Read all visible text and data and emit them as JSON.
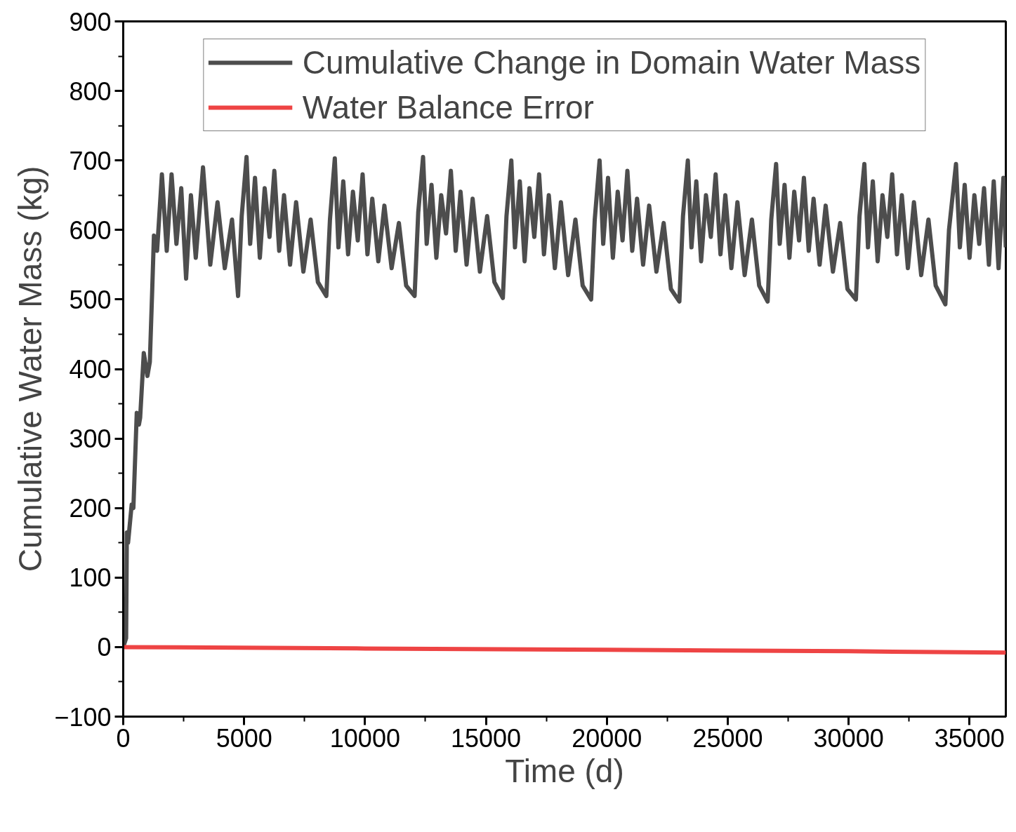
{
  "chart_data": {
    "type": "line",
    "xlabel": "Time (d)",
    "ylabel": "Cumulative Water Mass (kg)",
    "xlim": [
      0,
      36500
    ],
    "ylim": [
      -100,
      900
    ],
    "xticks": [
      0,
      5000,
      10000,
      15000,
      20000,
      25000,
      30000,
      35000
    ],
    "yticks": [
      -100,
      0,
      100,
      200,
      300,
      400,
      500,
      600,
      700,
      800,
      900
    ],
    "grid": false,
    "legend": "top",
    "line_style": "solid",
    "marker": "none",
    "series": [
      {
        "name": "Cumulative Change in Domain Water Mass",
        "color": "#4d4d4d",
        "x": [
          0,
          120,
          150,
          200,
          350,
          420,
          560,
          650,
          700,
          850,
          1000,
          1100,
          1200,
          1270,
          1400,
          1600,
          1800,
          2000,
          2200,
          2400,
          2600,
          2800,
          3000,
          3300,
          3600,
          3900,
          4200,
          4500,
          4750,
          4900,
          5100,
          5250,
          5450,
          5650,
          5850,
          6050,
          6250,
          6450,
          6650,
          6900,
          7150,
          7450,
          7750,
          8050,
          8400,
          8550,
          8750,
          8900,
          9100,
          9300,
          9500,
          9700,
          9900,
          10100,
          10300,
          10550,
          10800,
          11100,
          11400,
          11700,
          12050,
          12200,
          12400,
          12550,
          12750,
          12950,
          13150,
          13350,
          13550,
          13750,
          13950,
          14200,
          14450,
          14750,
          15050,
          15350,
          15700,
          15850,
          16050,
          16200,
          16400,
          16600,
          16800,
          17000,
          17200,
          17400,
          17600,
          17850,
          18100,
          18400,
          18700,
          19000,
          19350,
          19500,
          19700,
          19850,
          20050,
          20250,
          20450,
          20650,
          20850,
          21050,
          21250,
          21500,
          21750,
          22050,
          22350,
          22650,
          23000,
          23150,
          23350,
          23500,
          23700,
          23900,
          24100,
          24300,
          24500,
          24700,
          24900,
          25150,
          25400,
          25700,
          26000,
          26300,
          26650,
          26800,
          27000,
          27150,
          27350,
          27550,
          27750,
          27950,
          28150,
          28350,
          28550,
          28800,
          29050,
          29350,
          29650,
          29950,
          30300,
          30450,
          30650,
          30800,
          31000,
          31200,
          31400,
          31600,
          31800,
          32000,
          32200,
          32450,
          32700,
          33000,
          33300,
          33600,
          34000,
          34150,
          34440,
          34600,
          34800,
          35000,
          35200,
          35400,
          35600,
          35800,
          36000,
          36200,
          36400,
          36500
        ],
        "values": [
          0,
          13,
          165,
          150,
          205,
          200,
          337,
          320,
          330,
          423,
          390,
          410,
          515,
          592,
          570,
          680,
          570,
          680,
          580,
          660,
          530,
          650,
          560,
          690,
          550,
          640,
          545,
          615,
          505,
          620,
          705,
          580,
          675,
          560,
          660,
          590,
          685,
          570,
          650,
          550,
          640,
          540,
          615,
          525,
          505,
          615,
          703,
          575,
          670,
          565,
          655,
          585,
          680,
          565,
          645,
          555,
          635,
          545,
          610,
          520,
          505,
          625,
          705,
          580,
          665,
          560,
          650,
          595,
          685,
          570,
          655,
          550,
          645,
          540,
          620,
          525,
          502,
          620,
          700,
          575,
          670,
          555,
          660,
          590,
          680,
          565,
          650,
          545,
          640,
          535,
          615,
          520,
          500,
          615,
          700,
          580,
          675,
          560,
          655,
          585,
          685,
          570,
          645,
          550,
          635,
          540,
          610,
          515,
          497,
          620,
          700,
          575,
          670,
          555,
          650,
          590,
          680,
          565,
          650,
          545,
          640,
          535,
          615,
          520,
          497,
          615,
          695,
          580,
          665,
          560,
          655,
          585,
          675,
          570,
          645,
          550,
          635,
          540,
          610,
          515,
          500,
          620,
          695,
          575,
          670,
          555,
          650,
          590,
          680,
          565,
          650,
          545,
          640,
          535,
          615,
          520,
          493,
          600,
          695,
          575,
          665,
          560,
          650,
          580,
          660,
          550,
          670,
          545,
          675,
          575
        ]
      },
      {
        "name": "Water Balance Error",
        "color": "#ee4444",
        "x": [
          0,
          10000,
          20000,
          30000,
          36500
        ],
        "values": [
          0,
          -2,
          -4,
          -6,
          -8
        ]
      }
    ]
  }
}
